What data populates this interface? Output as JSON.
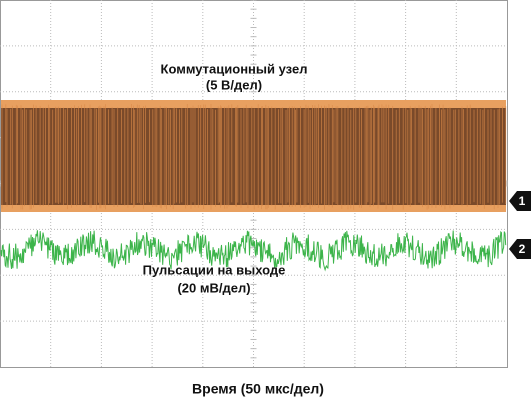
{
  "channels": [
    {
      "number": "1",
      "label": "Коммутационный узел",
      "scale": "(5 В/дел)"
    },
    {
      "number": "2",
      "label": "Пульсации на выходе",
      "scale": "(20 мВ/дел)"
    }
  ],
  "time_axis": "Время (50 мкс/дел)"
}
